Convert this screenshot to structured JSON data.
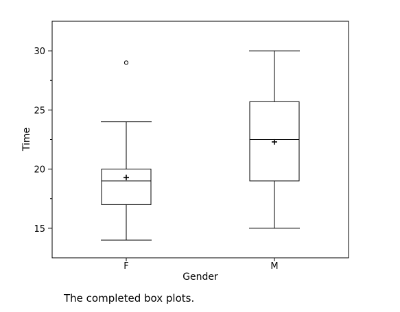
{
  "chart_data": {
    "type": "boxplot",
    "xlabel": "Gender",
    "ylabel": "Time",
    "ylim": [
      12.5,
      32.5
    ],
    "yticks": [
      15,
      20,
      25,
      30
    ],
    "categories": [
      "F",
      "M"
    ],
    "boxes": [
      {
        "category": "F",
        "whisker_low": 14,
        "q1": 17,
        "median": 19,
        "q3": 20,
        "whisker_high": 24,
        "mean": 19.3,
        "outliers": [
          29
        ]
      },
      {
        "category": "M",
        "whisker_low": 15,
        "q1": 19,
        "median": 22.5,
        "q3": 25.7,
        "whisker_high": 30,
        "mean": 22.3,
        "outliers": []
      }
    ],
    "grid": false
  },
  "caption": "The completed box plots."
}
